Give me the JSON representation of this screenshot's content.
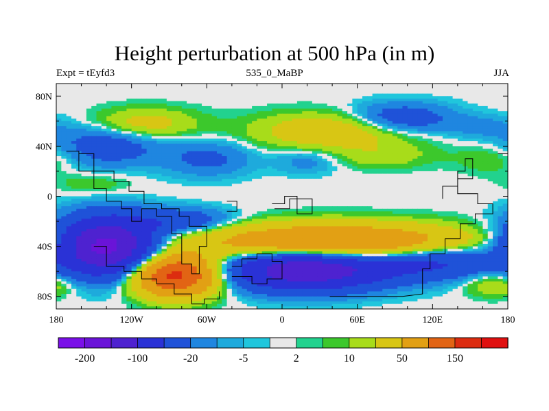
{
  "chart_data": {
    "type": "heatmap",
    "title": "Height perturbation at 500 hPa (in m)",
    "subtitle_left": "Expt = tEyfd3",
    "subtitle_center": "535_0_MaBP",
    "subtitle_right": "JJA",
    "xlim": [
      -180,
      180
    ],
    "ylim": [
      -90,
      90
    ],
    "x_ticks": [
      {
        "value": -180,
        "label": "180"
      },
      {
        "value": -120,
        "label": "120W"
      },
      {
        "value": -60,
        "label": "60W"
      },
      {
        "value": 0,
        "label": "0"
      },
      {
        "value": 60,
        "label": "60E"
      },
      {
        "value": 120,
        "label": "120E"
      },
      {
        "value": 180,
        "label": "180"
      }
    ],
    "y_ticks": [
      {
        "value": 80,
        "label": "80N"
      },
      {
        "value": 40,
        "label": "40N"
      },
      {
        "value": 0,
        "label": "0"
      },
      {
        "value": -40,
        "label": "40S"
      },
      {
        "value": -80,
        "label": "80S"
      }
    ],
    "levels": [
      -200,
      -150,
      -100,
      -50,
      -20,
      -10,
      -5,
      -2,
      2,
      5,
      10,
      20,
      50,
      100,
      150,
      200
    ],
    "colors": [
      "#7a10e8",
      "#6a14d8",
      "#4e22d0",
      "#2a32d6",
      "#1f52d8",
      "#1f86e0",
      "#1eaadc",
      "#20c6dc",
      "#e8e8e8",
      "#22d28e",
      "#3cc82c",
      "#a8dc1a",
      "#d8c614",
      "#e2a014",
      "#e26414",
      "#dc2c10",
      "#e01010"
    ],
    "colorbar_labels": [
      {
        "level": -200,
        "label": "-200"
      },
      {
        "level": -100,
        "label": "-100"
      },
      {
        "level": -20,
        "label": "-20"
      },
      {
        "level": -5,
        "label": "-5"
      },
      {
        "level": 2,
        "label": "2"
      },
      {
        "level": 10,
        "label": "10"
      },
      {
        "level": 50,
        "label": "50"
      },
      {
        "level": 150,
        "label": "150"
      }
    ],
    "field_features": [
      {
        "lon": 40,
        "lat": 52,
        "value": 40,
        "rlon": 60,
        "rlat": 14
      },
      {
        "lon": -110,
        "lat": 58,
        "value": 30,
        "rlon": 40,
        "rlat": 12
      },
      {
        "lon": 95,
        "lat": 62,
        "value": -40,
        "rlon": 40,
        "rlat": 12
      },
      {
        "lon": 160,
        "lat": 55,
        "value": -12,
        "rlon": 30,
        "rlat": 10
      },
      {
        "lon": -140,
        "lat": 40,
        "value": -35,
        "rlon": 40,
        "rlat": 16
      },
      {
        "lon": -60,
        "lat": 30,
        "value": -25,
        "rlon": 35,
        "rlat": 14
      },
      {
        "lon": 20,
        "lat": 28,
        "value": -15,
        "rlon": 25,
        "rlat": 10
      },
      {
        "lon": 80,
        "lat": 32,
        "value": 15,
        "rlon": 40,
        "rlat": 10
      },
      {
        "lon": 170,
        "lat": 30,
        "value": 12,
        "rlon": 30,
        "rlat": 12
      },
      {
        "lon": -150,
        "lat": 10,
        "value": 10,
        "rlon": 30,
        "rlat": 8
      },
      {
        "lon": -140,
        "lat": -40,
        "value": -170,
        "rlon": 38,
        "rlat": 22
      },
      {
        "lon": -80,
        "lat": -20,
        "value": -40,
        "rlon": 40,
        "rlat": 10
      },
      {
        "lon": -85,
        "lat": -63,
        "value": 170,
        "rlon": 32,
        "rlat": 16
      },
      {
        "lon": 40,
        "lat": -37,
        "value": 120,
        "rlon": 100,
        "rlat": 14
      },
      {
        "lon": 20,
        "lat": -58,
        "value": -150,
        "rlon": 60,
        "rlat": 16
      },
      {
        "lon": 120,
        "lat": -52,
        "value": -60,
        "rlon": 50,
        "rlat": 14
      },
      {
        "lon": 170,
        "lat": -70,
        "value": 25,
        "rlon": 25,
        "rlat": 10
      }
    ]
  }
}
